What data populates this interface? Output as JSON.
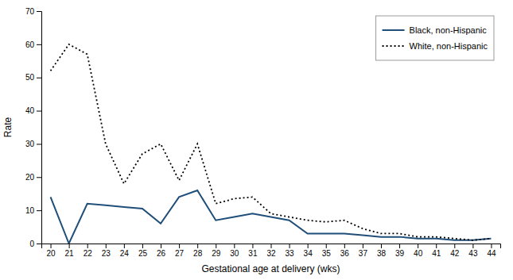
{
  "chart_data": {
    "type": "line",
    "x": [
      20,
      21,
      22,
      23,
      24,
      25,
      26,
      27,
      28,
      29,
      30,
      31,
      32,
      33,
      34,
      35,
      36,
      37,
      38,
      39,
      40,
      41,
      42,
      43,
      44
    ],
    "series": [
      {
        "name": "Black, non-Hispanic",
        "color": "#1f4e79",
        "line_style": "solid",
        "values": [
          14,
          0,
          12,
          11.5,
          11,
          10.5,
          6,
          14,
          16,
          7,
          8,
          9,
          8,
          7,
          3,
          3,
          3,
          2.5,
          2,
          2,
          1.5,
          1.5,
          1,
          1,
          1.5
        ]
      },
      {
        "name": "White, non-Hispanic",
        "color": "#000000",
        "line_style": "dotted",
        "values": [
          52,
          60,
          57,
          30,
          18,
          27,
          30,
          19,
          30,
          12,
          13.5,
          14,
          9,
          8,
          7,
          6.5,
          7,
          4.5,
          3,
          3,
          2,
          2,
          1.5,
          1,
          1.5
        ]
      }
    ],
    "xlabel": "Gestational age at delivery (wks)",
    "ylabel": "Rate",
    "xlim": [
      19.5,
      44.5
    ],
    "xticks": [
      20,
      21,
      22,
      23,
      24,
      25,
      26,
      27,
      28,
      29,
      30,
      31,
      32,
      33,
      34,
      35,
      36,
      37,
      38,
      39,
      40,
      41,
      42,
      43,
      44
    ],
    "ylim": [
      0,
      70
    ],
    "yticks": [
      0,
      10,
      20,
      30,
      40,
      50,
      60,
      70
    ],
    "grid": false,
    "legend": "upper right"
  }
}
